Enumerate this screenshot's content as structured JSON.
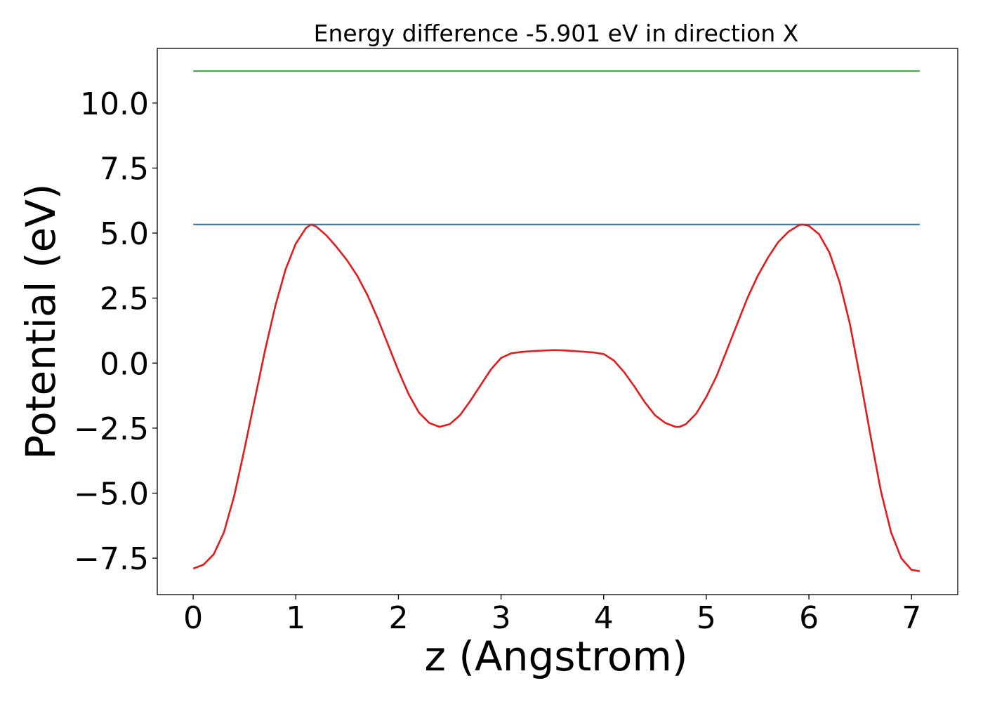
{
  "chart_data": {
    "type": "line",
    "title": "Energy difference -5.901 eV in direction X",
    "xlabel": "z (Angstrom)",
    "ylabel": "Potential (eV)",
    "xlim": [
      -0.35,
      7.45
    ],
    "ylim": [
      -8.9,
      12.1
    ],
    "xticks": [
      0,
      1,
      2,
      3,
      4,
      5,
      6,
      7
    ],
    "xtick_labels": [
      "0",
      "1",
      "2",
      "3",
      "4",
      "5",
      "6",
      "7"
    ],
    "yticks": [
      -7.5,
      -5.0,
      -2.5,
      0.0,
      2.5,
      5.0,
      7.5,
      10.0
    ],
    "ytick_labels": [
      "−7.5",
      "−5.0",
      "−2.5",
      "0.0",
      "2.5",
      "5.0",
      "7.5",
      "10.0"
    ],
    "grid": false,
    "series": [
      {
        "color": "#2ca02c",
        "x": [
          0,
          7.08
        ],
        "y": [
          11.23,
          11.23
        ]
      },
      {
        "color": "#1f77b4",
        "x": [
          0,
          7.08
        ],
        "y": [
          5.33,
          5.33
        ]
      },
      {
        "color": "#e41a1c",
        "x": [
          0,
          0.1,
          0.2,
          0.3,
          0.4,
          0.5,
          0.6,
          0.7,
          0.8,
          0.9,
          1.0,
          1.1,
          1.15,
          1.2,
          1.3,
          1.4,
          1.5,
          1.6,
          1.7,
          1.8,
          1.9,
          2.0,
          2.1,
          2.2,
          2.3,
          2.4,
          2.5,
          2.6,
          2.7,
          2.8,
          2.9,
          3.0,
          3.1,
          3.2,
          3.3,
          3.4,
          3.5,
          3.54,
          3.6,
          3.7,
          3.8,
          3.9,
          4.0,
          4.1,
          4.2,
          4.3,
          4.4,
          4.5,
          4.6,
          4.7,
          4.74,
          4.8,
          4.9,
          5.0,
          5.1,
          5.2,
          5.3,
          5.4,
          5.5,
          5.6,
          5.7,
          5.8,
          5.9,
          5.94,
          6.0,
          6.1,
          6.2,
          6.3,
          6.4,
          6.5,
          6.6,
          6.7,
          6.8,
          6.9,
          7.0,
          7.08
        ],
        "y": [
          -7.9,
          -7.75,
          -7.35,
          -6.5,
          -5.1,
          -3.3,
          -1.4,
          0.5,
          2.2,
          3.6,
          4.6,
          5.2,
          5.33,
          5.25,
          4.9,
          4.45,
          3.95,
          3.35,
          2.6,
          1.7,
          0.7,
          -0.3,
          -1.2,
          -1.9,
          -2.3,
          -2.45,
          -2.35,
          -2.0,
          -1.45,
          -0.85,
          -0.25,
          0.2,
          0.38,
          0.43,
          0.46,
          0.48,
          0.5,
          0.5,
          0.49,
          0.47,
          0.44,
          0.41,
          0.35,
          0.1,
          -0.35,
          -0.9,
          -1.5,
          -2.0,
          -2.3,
          -2.45,
          -2.45,
          -2.35,
          -1.95,
          -1.3,
          -0.5,
          0.5,
          1.5,
          2.5,
          3.35,
          4.05,
          4.65,
          5.05,
          5.3,
          5.33,
          5.28,
          4.95,
          4.25,
          3.1,
          1.5,
          -0.6,
          -2.8,
          -4.9,
          -6.5,
          -7.5,
          -7.95,
          -8.0
        ]
      }
    ]
  }
}
